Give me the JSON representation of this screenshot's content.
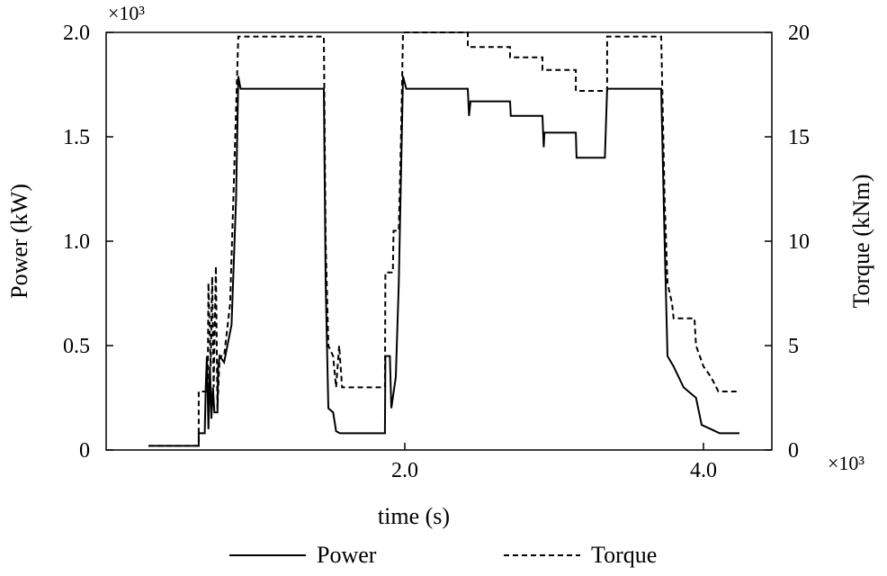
{
  "chart_data": {
    "type": "line",
    "xlabel": "time (s)",
    "ylabel": "Power (kW)",
    "y2label": "Torque (kNm)",
    "x_multiplier": "×10³",
    "y_multiplier": "×10³",
    "xlim": [
      0,
      4458
    ],
    "ylim": [
      0,
      2000
    ],
    "y2lim": [
      0,
      20
    ],
    "x_ticks": [
      {
        "value": 2000,
        "label": "2.0"
      },
      {
        "value": 4000,
        "label": "4.0"
      }
    ],
    "y_ticks": [
      {
        "value": 0,
        "label": "0"
      },
      {
        "value": 500,
        "label": "0.5"
      },
      {
        "value": 1000,
        "label": "1.0"
      },
      {
        "value": 1500,
        "label": "1.5"
      },
      {
        "value": 2000,
        "label": "2.0"
      }
    ],
    "y2_ticks": [
      {
        "value": 0,
        "label": "0"
      },
      {
        "value": 5,
        "label": "5"
      },
      {
        "value": 10,
        "label": "10"
      },
      {
        "value": 15,
        "label": "15"
      },
      {
        "value": 20,
        "label": "20"
      }
    ],
    "grid": false,
    "legend": {
      "placement": "bottom",
      "entries": [
        "Power",
        "Torque"
      ]
    },
    "series": [
      {
        "name": "Power",
        "axis": "left",
        "style": "solid",
        "points": [
          [
            283,
            20
          ],
          [
            620,
            20
          ],
          [
            620,
            80
          ],
          [
            660,
            80
          ],
          [
            667,
            300
          ],
          [
            675,
            450
          ],
          [
            685,
            100
          ],
          [
            695,
            400
          ],
          [
            705,
            150
          ],
          [
            715,
            300
          ],
          [
            725,
            180
          ],
          [
            745,
            180
          ],
          [
            750,
            400
          ],
          [
            760,
            450
          ],
          [
            790,
            420
          ],
          [
            840,
            600
          ],
          [
            870,
            1200
          ],
          [
            885,
            1790
          ],
          [
            900,
            1730
          ],
          [
            1458,
            1730
          ],
          [
            1470,
            800
          ],
          [
            1488,
            200
          ],
          [
            1520,
            180
          ],
          [
            1540,
            90
          ],
          [
            1566,
            80
          ],
          [
            1867,
            80
          ],
          [
            1870,
            450
          ],
          [
            1900,
            450
          ],
          [
            1910,
            200
          ],
          [
            1940,
            350
          ],
          [
            1960,
            800
          ],
          [
            1988,
            1790
          ],
          [
            2010,
            1730
          ],
          [
            2422,
            1730
          ],
          [
            2430,
            1600
          ],
          [
            2440,
            1670
          ],
          [
            2705,
            1670
          ],
          [
            2710,
            1600
          ],
          [
            2922,
            1600
          ],
          [
            2930,
            1450
          ],
          [
            2935,
            1520
          ],
          [
            3145,
            1520
          ],
          [
            3150,
            1400
          ],
          [
            3340,
            1400
          ],
          [
            3355,
            1730
          ],
          [
            3717,
            1730
          ],
          [
            3740,
            1000
          ],
          [
            3759,
            450
          ],
          [
            3800,
            400
          ],
          [
            3867,
            300
          ],
          [
            3950,
            250
          ],
          [
            3988,
            120
          ],
          [
            4050,
            100
          ],
          [
            4108,
            80
          ],
          [
            4241,
            80
          ]
        ]
      },
      {
        "name": "Torque",
        "axis": "right",
        "style": "dashed",
        "points": [
          [
            283,
            0.2
          ],
          [
            620,
            0.2
          ],
          [
            620,
            2.8
          ],
          [
            680,
            2.8
          ],
          [
            685,
            8
          ],
          [
            700,
            4
          ],
          [
            710,
            8.3
          ],
          [
            720,
            3
          ],
          [
            735,
            8.8
          ],
          [
            745,
            2
          ],
          [
            760,
            4.5
          ],
          [
            790,
            4.5
          ],
          [
            830,
            7
          ],
          [
            860,
            14
          ],
          [
            885,
            19.8
          ],
          [
            1458,
            19.8
          ],
          [
            1470,
            10
          ],
          [
            1488,
            5
          ],
          [
            1520,
            4.5
          ],
          [
            1540,
            3
          ],
          [
            1560,
            5
          ],
          [
            1580,
            3
          ],
          [
            1867,
            3
          ],
          [
            1870,
            8.5
          ],
          [
            1920,
            8.5
          ],
          [
            1925,
            10.5
          ],
          [
            1960,
            10.5
          ],
          [
            1975,
            15
          ],
          [
            1988,
            20
          ],
          [
            2422,
            20
          ],
          [
            2422,
            19.3
          ],
          [
            2705,
            19.3
          ],
          [
            2705,
            18.8
          ],
          [
            2922,
            18.8
          ],
          [
            2922,
            18.2
          ],
          [
            3145,
            18.2
          ],
          [
            3145,
            17.2
          ],
          [
            3355,
            17.2
          ],
          [
            3355,
            19.8
          ],
          [
            3717,
            19.8
          ],
          [
            3740,
            12
          ],
          [
            3759,
            8
          ],
          [
            3790,
            7
          ],
          [
            3800,
            6.3
          ],
          [
            3940,
            6.3
          ],
          [
            3950,
            5
          ],
          [
            4000,
            4
          ],
          [
            4050,
            3.5
          ],
          [
            4100,
            2.8
          ],
          [
            4241,
            2.8
          ]
        ]
      }
    ]
  }
}
